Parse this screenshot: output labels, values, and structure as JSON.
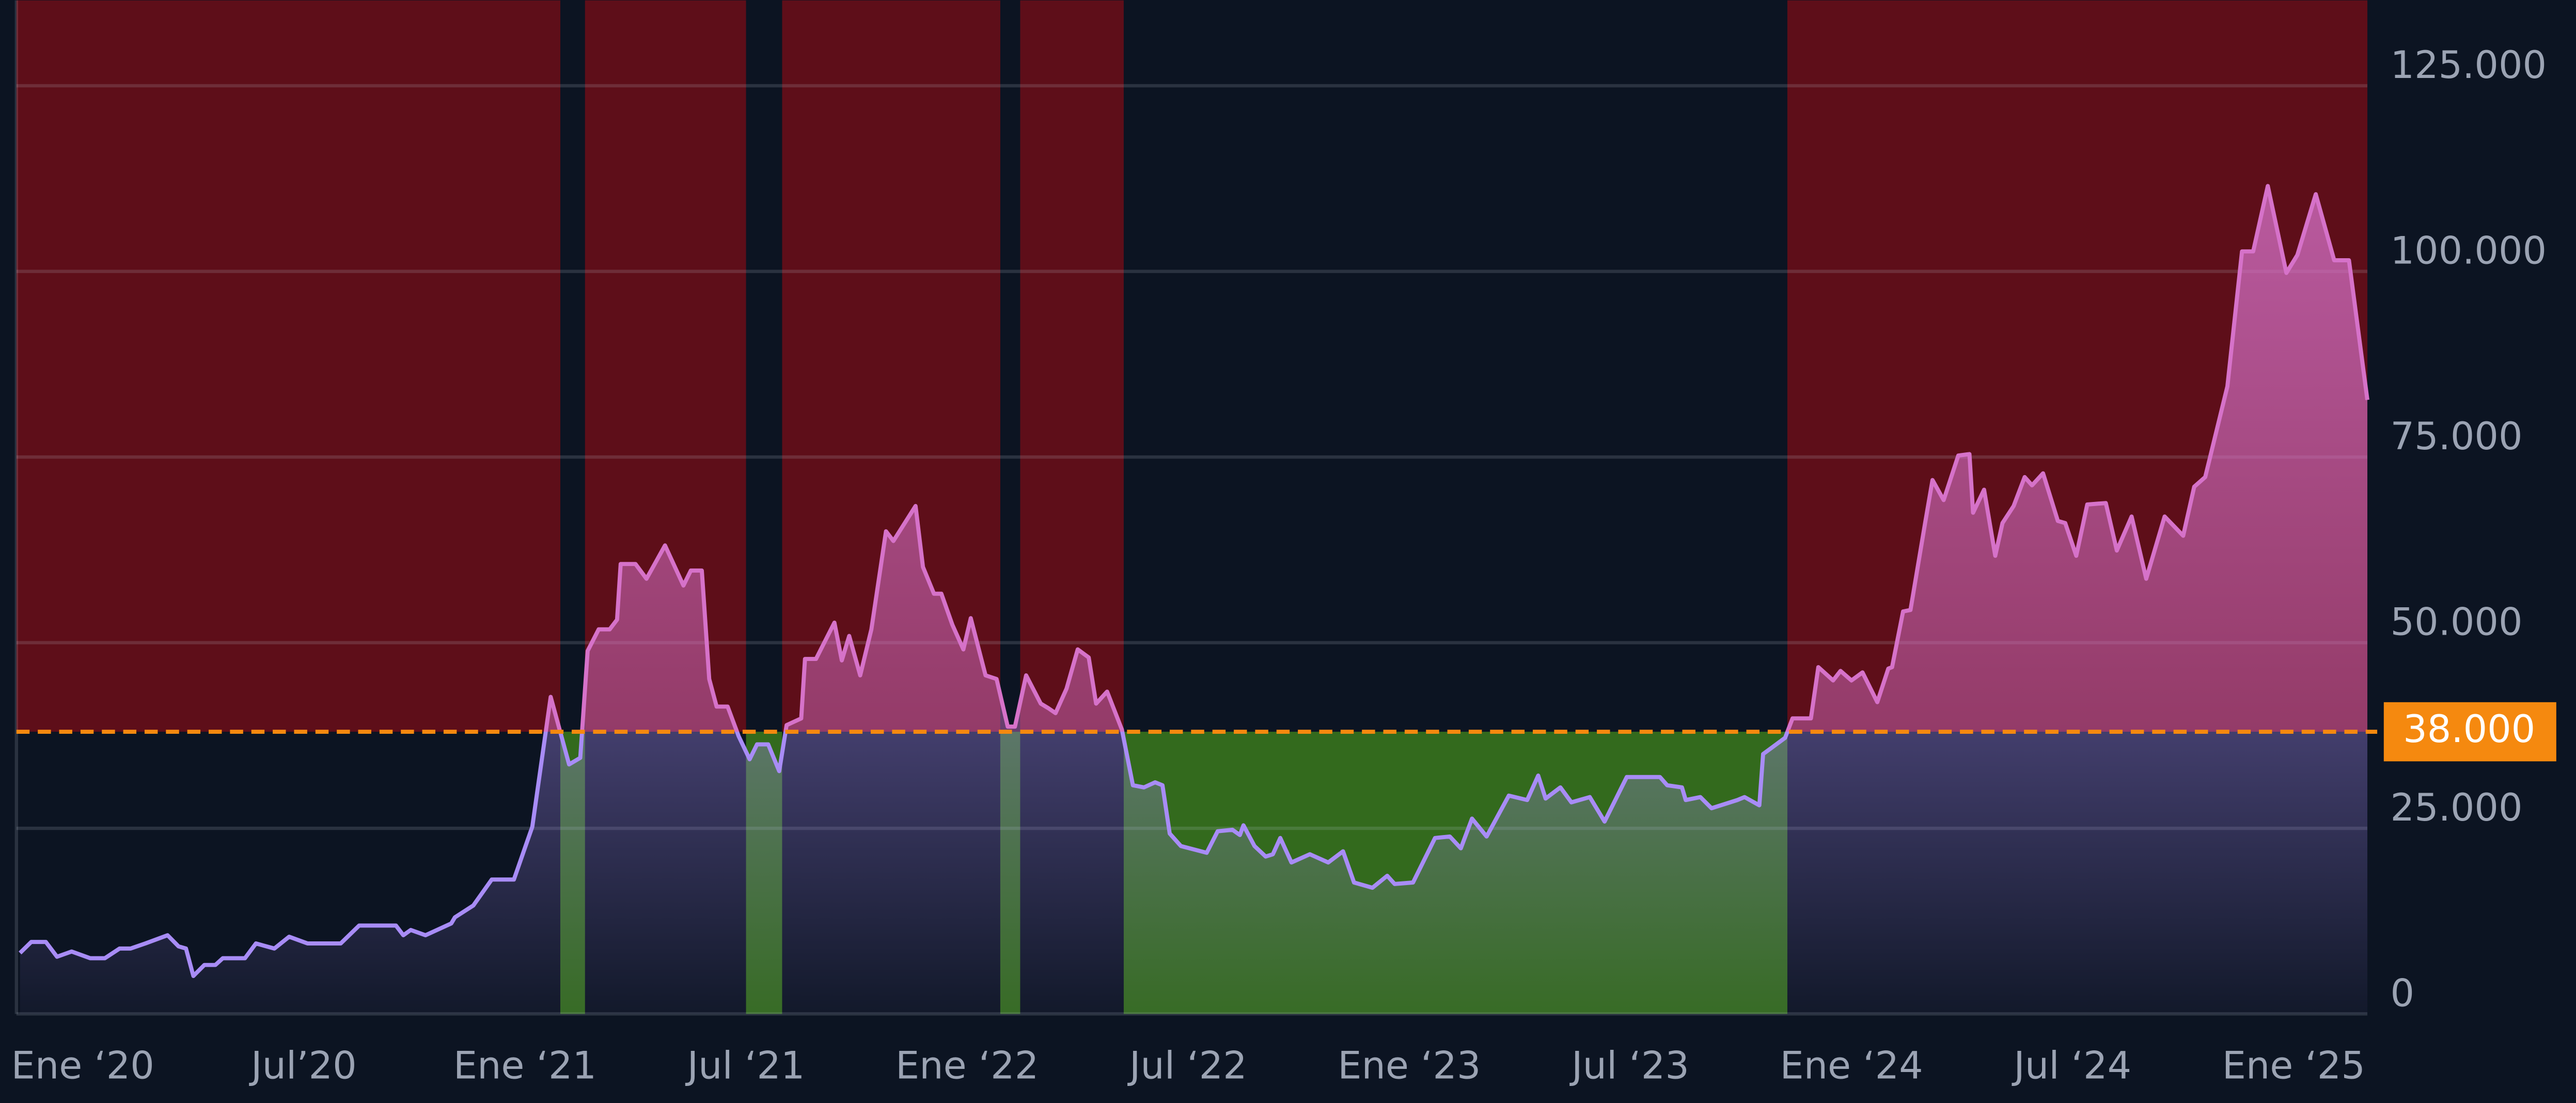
{
  "chart_data": {
    "type": "threshold-area",
    "x": [
      -1.7,
      -1.4,
      -1.0,
      -0.7,
      -0.3,
      0.2,
      0.6,
      1.0,
      1.3,
      1.7,
      2.3,
      2.6,
      2.8,
      3.0,
      3.3,
      3.6,
      3.8,
      4.4,
      4.7,
      5.2,
      5.6,
      6.1,
      7.0,
      7.5,
      8.5,
      8.7,
      8.9,
      9.3,
      10.0,
      10.1,
      10.6,
      11.1,
      11.7,
      12.2,
      12.7,
      13.2,
      13.5,
      13.7,
      14.0,
      14.3,
      14.5,
      14.6,
      15.0,
      15.3,
      15.8,
      16.3,
      16.5,
      16.8,
      17.0,
      17.2,
      17.5,
      17.8,
      18.1,
      18.3,
      18.6,
      18.9,
      19.1,
      19.5,
      19.6,
      19.9,
      20.4,
      20.6,
      20.8,
      21.1,
      21.4,
      21.8,
      22.0,
      22.6,
      22.8,
      23.1,
      23.3,
      23.6,
      23.9,
      24.1,
      24.5,
      24.8,
      25.1,
      25.3,
      25.6,
      26.0,
      26.2,
      26.4,
      26.7,
      27.0,
      27.3,
      27.5,
      27.8,
      28.2,
      28.5,
      28.8,
      29.1,
      29.3,
      29.5,
      29.8,
      30.5,
      30.8,
      31.2,
      31.4,
      31.5,
      31.8,
      32.1,
      32.3,
      32.5,
      32.8,
      33.3,
      33.8,
      34.2,
      34.5,
      35.0,
      35.4,
      35.6,
      36.1,
      36.7,
      37.1,
      37.4,
      37.7,
      38.1,
      38.7,
      39.2,
      39.5,
      39.7,
      40.1,
      40.4,
      40.9,
      41.3,
      41.9,
      42.8,
      43.0,
      43.4,
      43.5,
      43.9,
      44.2,
      44.9,
      45.1,
      45.5,
      45.6,
      46.2,
      46.4,
      46.9,
      47.1,
      47.5,
      47.7,
      48.0,
      48.3,
      48.7,
      49.0,
      49.1,
      49.4,
      49.6,
      50.0,
      50.2,
      50.5,
      50.9,
      51.2,
      51.3,
      51.6,
      51.9,
      52.1,
      52.4,
      52.7,
      52.9,
      53.2,
      53.6,
      53.8,
      54.1,
      54.4,
      54.9,
      55.2,
      55.6,
      56.0,
      56.5,
      57.0,
      57.3,
      57.6,
      58.2,
      58.6,
      58.9,
      59.3,
      59.8,
      60.1,
      60.6,
      61.1,
      61.5,
      62.0
    ],
    "values": [
      8200,
      9700,
      9700,
      7700,
      8400,
      7500,
      7500,
      8800,
      8800,
      9500,
      10600,
      9100,
      8800,
      5100,
      6600,
      6600,
      7500,
      7500,
      9500,
      8800,
      10400,
      9500,
      9500,
      11900,
      11900,
      10600,
      11300,
      10600,
      12200,
      13000,
      14600,
      18100,
      18100,
      25200,
      42700,
      33600,
      34500,
      48900,
      51800,
      51800,
      53100,
      60600,
      60600,
      58600,
      63100,
      57700,
      59700,
      59700,
      45100,
      41400,
      41400,
      37400,
      34300,
      36300,
      36300,
      32700,
      38900,
      39800,
      47800,
      47800,
      52700,
      47600,
      50900,
      45600,
      51800,
      65000,
      63700,
      68400,
      60200,
      56600,
      56600,
      52400,
      49100,
      53300,
      45600,
      45100,
      38700,
      38700,
      45600,
      41800,
      41200,
      40500,
      43800,
      49100,
      48000,
      41800,
      43400,
      38300,
      30800,
      30500,
      31200,
      30800,
      24300,
      22600,
      21700,
      24600,
      24800,
      24100,
      25400,
      22600,
      21200,
      21500,
      23700,
      20400,
      21500,
      20400,
      21900,
      17700,
      17000,
      18600,
      17500,
      17700,
      23700,
      23900,
      22300,
      26300,
      23900,
      29400,
      28800,
      32100,
      29000,
      30500,
      28500,
      29200,
      25900,
      31900,
      31900,
      30800,
      30500,
      28800,
      29200,
      27700,
      28800,
      29200,
      28100,
      35000,
      37200,
      39800,
      39800,
      46700,
      44900,
      46200,
      44900,
      46000,
      42000,
      46500,
      46700,
      54200,
      54400,
      66100,
      71900,
      69200,
      75200,
      75400,
      67500,
      70600,
      61700,
      66100,
      68400,
      72300,
      71200,
      72800,
      66400,
      66100,
      61700,
      68600,
      68800,
      62400,
      67000,
      58600,
      67000,
      64400,
      71000,
      72300,
      84500,
      102700,
      102700,
      111500,
      99800,
      102200,
      110400,
      101500,
      101500,
      82700
    ],
    "line_color_above": "#d672c9",
    "line_color_below": "#a88cf6",
    "xlim": [
      -1.8,
      62.0
    ],
    "xticks": [
      {
        "value": 0,
        "label": "Ene ‘20"
      },
      {
        "value": 6,
        "label": "Jul’20"
      },
      {
        "value": 12,
        "label": "Ene ‘21"
      },
      {
        "value": 18,
        "label": "Jul ‘21"
      },
      {
        "value": 24,
        "label": "Ene ‘22"
      },
      {
        "value": 30,
        "label": "Jul ‘22"
      },
      {
        "value": 36,
        "label": "Ene ‘23"
      },
      {
        "value": 42,
        "label": "Jul ‘23"
      },
      {
        "value": 48,
        "label": "Ene ‘24"
      },
      {
        "value": 54,
        "label": "Jul ‘24"
      },
      {
        "value": 60,
        "label": "Ene ‘25"
      }
    ],
    "ylim": [
      0,
      136500
    ],
    "yticks": [
      0,
      {
        "value": 25000,
        "label": "25.000"
      },
      {
        "value": 50000,
        "label": "50.000"
      },
      {
        "value": 75000,
        "label": "75.000"
      },
      {
        "value": 100000,
        "label": "100.000"
      },
      {
        "value": 125000,
        "label": "125.000"
      }
    ],
    "grid": true,
    "threshold": {
      "value": 38000,
      "label": "38.000",
      "color": "#f5890f"
    },
    "zones": [
      {
        "side": "above",
        "color": "#5e0e19",
        "ranges": [
          [
            -1.8,
            12.96
          ],
          [
            13.63,
            18.0
          ],
          [
            18.98,
            24.9
          ],
          [
            25.44,
            28.25
          ],
          [
            46.26,
            62.0
          ]
        ]
      },
      {
        "side": "below",
        "color": "#336a1d",
        "ranges": [
          [
            12.96,
            13.63
          ],
          [
            18.0,
            18.98
          ],
          [
            24.9,
            25.44
          ],
          [
            28.25,
            46.26
          ]
        ]
      }
    ]
  }
}
